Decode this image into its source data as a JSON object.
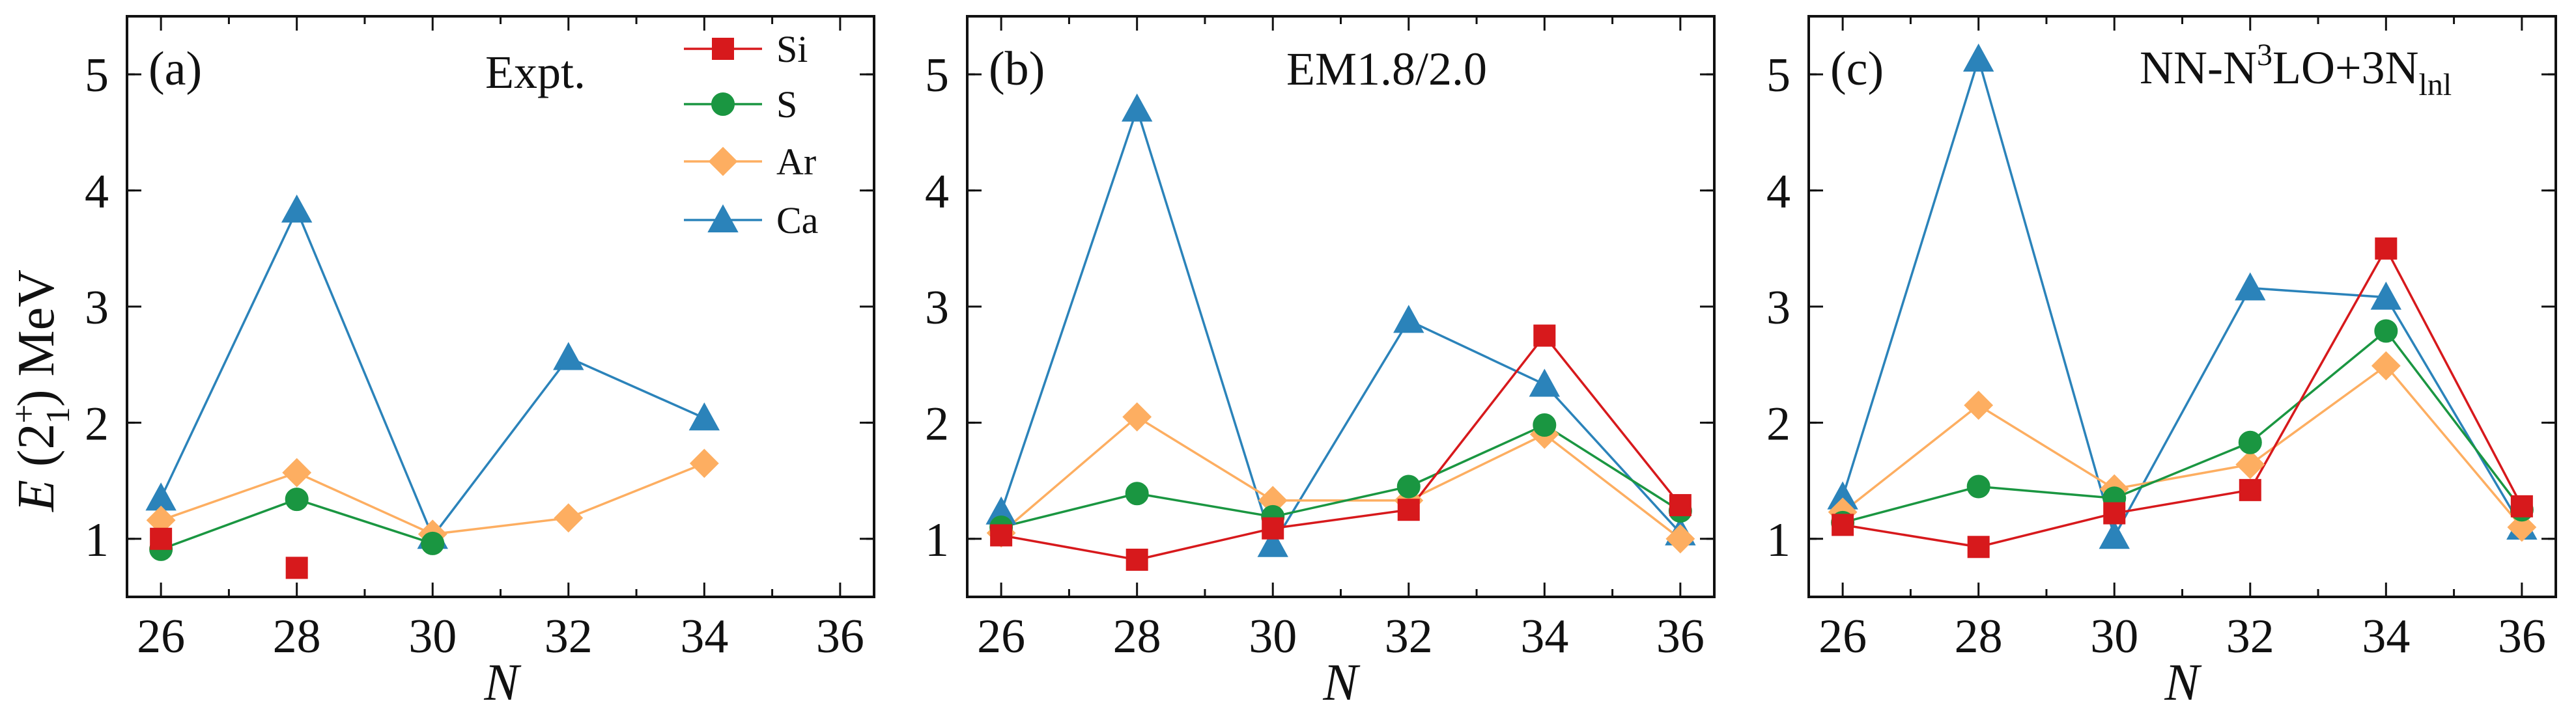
{
  "figure": {
    "ylabel_main": "E",
    "ylabel_rest": " (2",
    "ylabel_sup": "+",
    "ylabel_sub": "1",
    "ylabel_unit": ") MeV",
    "xlabel": "N"
  },
  "legend": [
    {
      "name": "Si",
      "color": "#d7191c",
      "marker": "square"
    },
    {
      "name": "S",
      "color": "#1a9641",
      "marker": "circle"
    },
    {
      "name": "Ar",
      "color": "#fdae61",
      "marker": "diamond"
    },
    {
      "name": "Ca",
      "color": "#2b83ba",
      "marker": "triangle"
    }
  ],
  "chart_data": [
    {
      "type": "line",
      "panel_label": "(a)",
      "model_label": "Expt.",
      "xlabel": "N",
      "ylabel": "E (2+1) MeV",
      "xlim": [
        25.5,
        36.5
      ],
      "ylim": [
        0.5,
        5.5
      ],
      "xticks": [
        26,
        28,
        30,
        32,
        34,
        36
      ],
      "yticks": [
        1,
        2,
        3,
        4,
        5
      ],
      "legend_position": "top-center",
      "series": [
        {
          "name": "Si",
          "x": [
            26,
            28
          ],
          "y": [
            1.0,
            0.75
          ],
          "connected": false
        },
        {
          "name": "S",
          "x": [
            26,
            28,
            30
          ],
          "y": [
            0.91,
            1.34,
            0.96
          ],
          "connected": true
        },
        {
          "name": "Ar",
          "x": [
            26,
            28,
            30,
            32,
            34
          ],
          "y": [
            1.16,
            1.57,
            1.04,
            1.18,
            1.65
          ],
          "connected": true
        },
        {
          "name": "Ca",
          "x": [
            26,
            28,
            30,
            32,
            34
          ],
          "y": [
            1.35,
            3.83,
            1.02,
            2.56,
            2.04
          ],
          "connected": true
        }
      ]
    },
    {
      "type": "line",
      "panel_label": "(b)",
      "model_label": "EM1.8/2.0",
      "xlabel": "N",
      "xlim": [
        25.5,
        36.5
      ],
      "ylim": [
        0.5,
        5.5
      ],
      "xticks": [
        26,
        28,
        30,
        32,
        34,
        36
      ],
      "yticks": [
        1,
        2,
        3,
        4,
        5
      ],
      "series": [
        {
          "name": "Si",
          "x": [
            26,
            28,
            30,
            32,
            34,
            36
          ],
          "y": [
            1.03,
            0.82,
            1.09,
            1.25,
            2.75,
            1.29
          ],
          "connected": true
        },
        {
          "name": "S",
          "x": [
            26,
            28,
            30,
            32,
            34,
            36
          ],
          "y": [
            1.1,
            1.39,
            1.19,
            1.45,
            1.98,
            1.24
          ],
          "connected": true
        },
        {
          "name": "Ar",
          "x": [
            26,
            28,
            30,
            32,
            34,
            36
          ],
          "y": [
            1.05,
            2.05,
            1.33,
            1.33,
            1.9,
            1.0
          ],
          "connected": true
        },
        {
          "name": "Ca",
          "x": [
            26,
            28,
            30,
            32,
            34,
            36
          ],
          "y": [
            1.23,
            4.7,
            0.95,
            2.88,
            2.33,
            1.05
          ],
          "connected": true
        }
      ]
    },
    {
      "type": "line",
      "panel_label": "(c)",
      "model_label_base": "NN-N",
      "model_label_sup": "3",
      "model_label_mid": "LO+3N",
      "model_label_sub": "lnl",
      "xlabel": "N",
      "xlim": [
        25.5,
        36.5
      ],
      "ylim": [
        0.5,
        5.5
      ],
      "xticks": [
        26,
        28,
        30,
        32,
        34,
        36
      ],
      "yticks": [
        1,
        2,
        3,
        4,
        5
      ],
      "series": [
        {
          "name": "Si",
          "x": [
            26,
            28,
            30,
            32,
            34,
            36
          ],
          "y": [
            1.12,
            0.93,
            1.22,
            1.42,
            3.5,
            1.28
          ],
          "connected": true
        },
        {
          "name": "S",
          "x": [
            26,
            28,
            30,
            32,
            34,
            36
          ],
          "y": [
            1.14,
            1.45,
            1.35,
            1.83,
            2.79,
            1.25
          ],
          "connected": true
        },
        {
          "name": "Ar",
          "x": [
            26,
            28,
            30,
            32,
            34,
            36
          ],
          "y": [
            1.23,
            2.15,
            1.43,
            1.64,
            2.49,
            1.1
          ],
          "connected": true
        },
        {
          "name": "Ca",
          "x": [
            26,
            28,
            30,
            32,
            34,
            36
          ],
          "y": [
            1.36,
            5.13,
            1.02,
            3.16,
            3.08,
            1.1
          ],
          "connected": true
        }
      ]
    }
  ]
}
